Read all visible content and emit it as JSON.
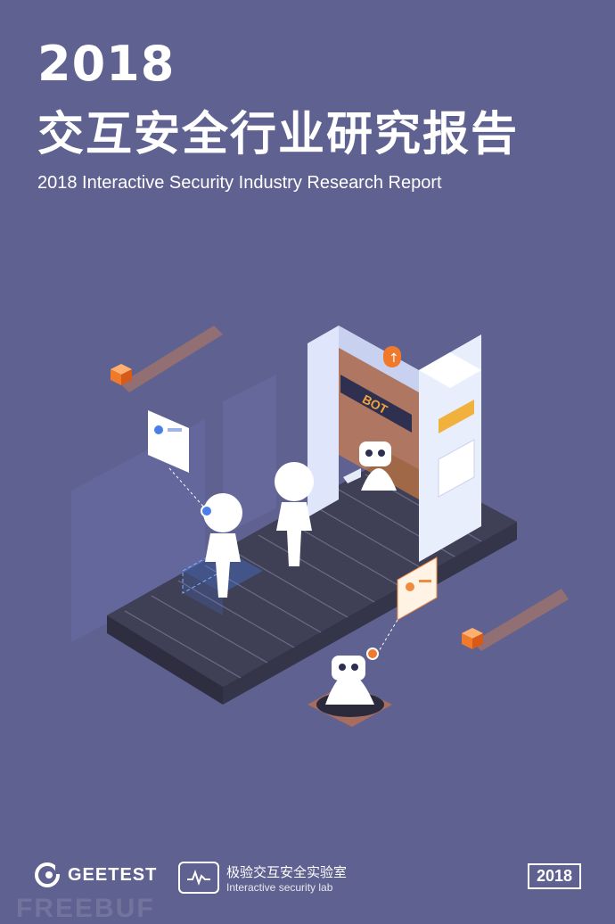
{
  "title": {
    "year": "2018",
    "chinese": "交互安全行业研究报告",
    "english": "2018 Interactive Security Industry Research Report"
  },
  "illustration": {
    "gate_sign": "BOT"
  },
  "footer": {
    "brand": "GEETEST",
    "lab_cn": "极验交互安全实验室",
    "lab_en": "Interactive security lab",
    "year_badge": "2018"
  },
  "watermark": "FREEBUF",
  "colors": {
    "background": "#5f6190",
    "accent_orange": "#f08a3c",
    "accent_blue": "#4a7ee8",
    "belt": "#3f3f55"
  }
}
